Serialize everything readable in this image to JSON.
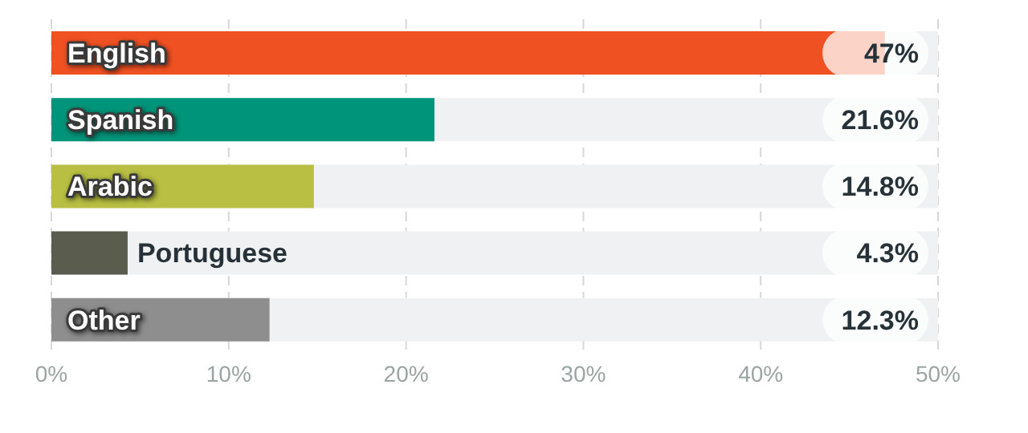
{
  "chart_data": {
    "type": "bar",
    "orientation": "horizontal",
    "categories": [
      "English",
      "Spanish",
      "Arabic",
      "Portuguese",
      "Other"
    ],
    "values": [
      47,
      21.6,
      14.8,
      4.3,
      12.3
    ],
    "colors": [
      "#f05123",
      "#00957a",
      "#b8bf42",
      "#5a5c4d",
      "#8e8e8e"
    ],
    "value_labels": [
      "47%",
      "21.6%",
      "14.8%",
      "4.3%",
      "12.3%"
    ],
    "xlim": [
      0,
      50
    ],
    "xticks": [
      {
        "value": 0,
        "label": "0%"
      },
      {
        "value": 10,
        "label": "10%"
      },
      {
        "value": 20,
        "label": "20%"
      },
      {
        "value": 30,
        "label": "30%"
      },
      {
        "value": 40,
        "label": "40%"
      },
      {
        "value": 50,
        "label": "50%"
      }
    ],
    "grid": "x"
  }
}
